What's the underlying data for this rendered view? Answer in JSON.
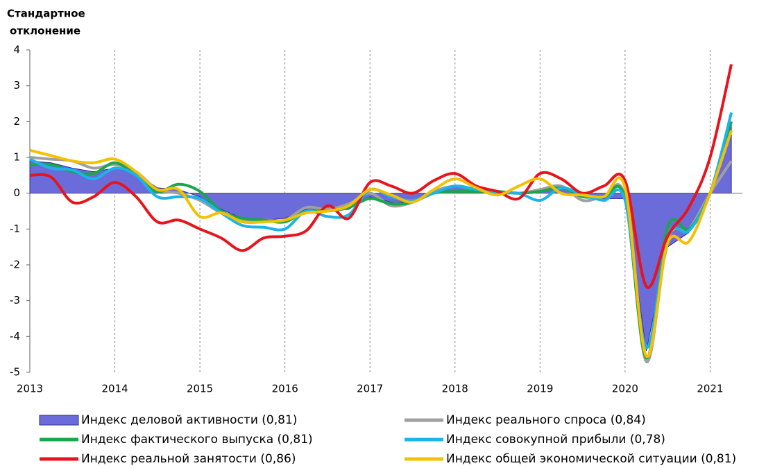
{
  "chart_data": {
    "type": "line",
    "y_label": [
      "Стандартное",
      "отклонение"
    ],
    "x": [
      2013,
      2013.25,
      2013.5,
      2013.75,
      2014,
      2014.25,
      2014.5,
      2014.75,
      2015,
      2015.25,
      2015.5,
      2015.75,
      2016,
      2016.25,
      2016.5,
      2016.75,
      2017,
      2017.25,
      2017.5,
      2017.75,
      2018,
      2018.25,
      2018.5,
      2018.75,
      2019,
      2019.25,
      2019.5,
      2019.75,
      2020,
      2020.25,
      2020.5,
      2020.75,
      2021,
      2021.25
    ],
    "series": [
      {
        "name": "Индекс деловой активности (0,81)",
        "kind": "area",
        "color": "#6b6bd9",
        "values": [
          0.9,
          0.85,
          0.7,
          0.6,
          0.7,
          0.55,
          0.15,
          0.1,
          -0.1,
          -0.45,
          -0.7,
          -0.75,
          -0.7,
          -0.45,
          -0.5,
          -0.45,
          -0.1,
          -0.25,
          -0.25,
          0.0,
          0.2,
          0.1,
          0.05,
          0.0,
          0.1,
          0.15,
          -0.1,
          -0.15,
          -0.15,
          -4.4,
          -1.5,
          -1.1,
          0.0,
          1.9
        ]
      },
      {
        "name": "Индекс реального спроса (0,84)",
        "color": "#a0a0a0",
        "values": [
          1.0,
          0.95,
          0.9,
          0.7,
          0.8,
          0.6,
          0.1,
          0.0,
          -0.2,
          -0.55,
          -0.75,
          -0.75,
          -0.75,
          -0.4,
          -0.45,
          -0.3,
          0.0,
          -0.35,
          -0.25,
          0.05,
          0.2,
          0.1,
          0.05,
          0.0,
          0.1,
          0.2,
          -0.2,
          -0.1,
          -0.1,
          -4.7,
          -1.3,
          -1.0,
          0.0,
          0.9
        ]
      },
      {
        "name": "Индекс фактического выпуска (0,81)",
        "color": "#1aa64a",
        "values": [
          0.8,
          0.8,
          0.6,
          0.55,
          0.85,
          0.5,
          0.05,
          0.25,
          0.05,
          -0.5,
          -0.7,
          -0.75,
          -0.8,
          -0.5,
          -0.5,
          -0.4,
          -0.15,
          -0.3,
          -0.25,
          0.0,
          0.05,
          0.05,
          0.05,
          0.0,
          0.05,
          0.15,
          -0.1,
          -0.1,
          -0.15,
          -4.6,
          -0.95,
          -1.0,
          0.0,
          2.0
        ]
      },
      {
        "name": "Индекс совокупной прибыли (0,78)",
        "color": "#1ab4ea",
        "values": [
          0.95,
          0.7,
          0.65,
          0.4,
          0.7,
          0.5,
          -0.1,
          -0.1,
          -0.15,
          -0.55,
          -0.9,
          -0.95,
          -1.0,
          -0.5,
          -0.65,
          -0.6,
          0.1,
          -0.1,
          -0.2,
          0.0,
          0.2,
          0.1,
          0.0,
          0.0,
          -0.2,
          0.15,
          -0.05,
          -0.2,
          -0.2,
          -4.3,
          -1.2,
          -1.05,
          0.0,
          2.25
        ]
      },
      {
        "name": "Индекс реальной занятости (0,86)",
        "color": "#e8141c",
        "values": [
          0.5,
          0.45,
          -0.25,
          -0.1,
          0.3,
          -0.1,
          -0.8,
          -0.75,
          -1.0,
          -1.25,
          -1.6,
          -1.25,
          -1.2,
          -1.05,
          -0.35,
          -0.7,
          0.3,
          0.2,
          0.0,
          0.35,
          0.55,
          0.2,
          0.05,
          -0.15,
          0.55,
          0.4,
          0.0,
          0.2,
          0.35,
          -2.6,
          -1.2,
          -0.4,
          1.0,
          3.6
        ]
      },
      {
        "name": "Индекс общей экономической ситуации (0,81)",
        "color": "#f5c000",
        "values": [
          1.2,
          1.05,
          0.9,
          0.85,
          0.95,
          0.6,
          0.1,
          0.1,
          -0.65,
          -0.55,
          -0.8,
          -0.8,
          -0.75,
          -0.55,
          -0.5,
          -0.35,
          0.1,
          -0.05,
          -0.25,
          0.1,
          0.4,
          0.15,
          -0.05,
          0.2,
          0.4,
          0.0,
          -0.05,
          -0.1,
          0.15,
          -4.55,
          -1.4,
          -1.35,
          0.0,
          1.75
        ]
      }
    ],
    "xlim": [
      2013,
      2021.38
    ],
    "xticks": [
      2013,
      2014,
      2015,
      2016,
      2017,
      2018,
      2019,
      2020,
      2021
    ],
    "ylim": [
      -5,
      4
    ],
    "yticks": [
      -5,
      -4,
      -3,
      -2,
      -1,
      0,
      1,
      2,
      3,
      4
    ],
    "xgrid": true,
    "legend": "bottom"
  }
}
